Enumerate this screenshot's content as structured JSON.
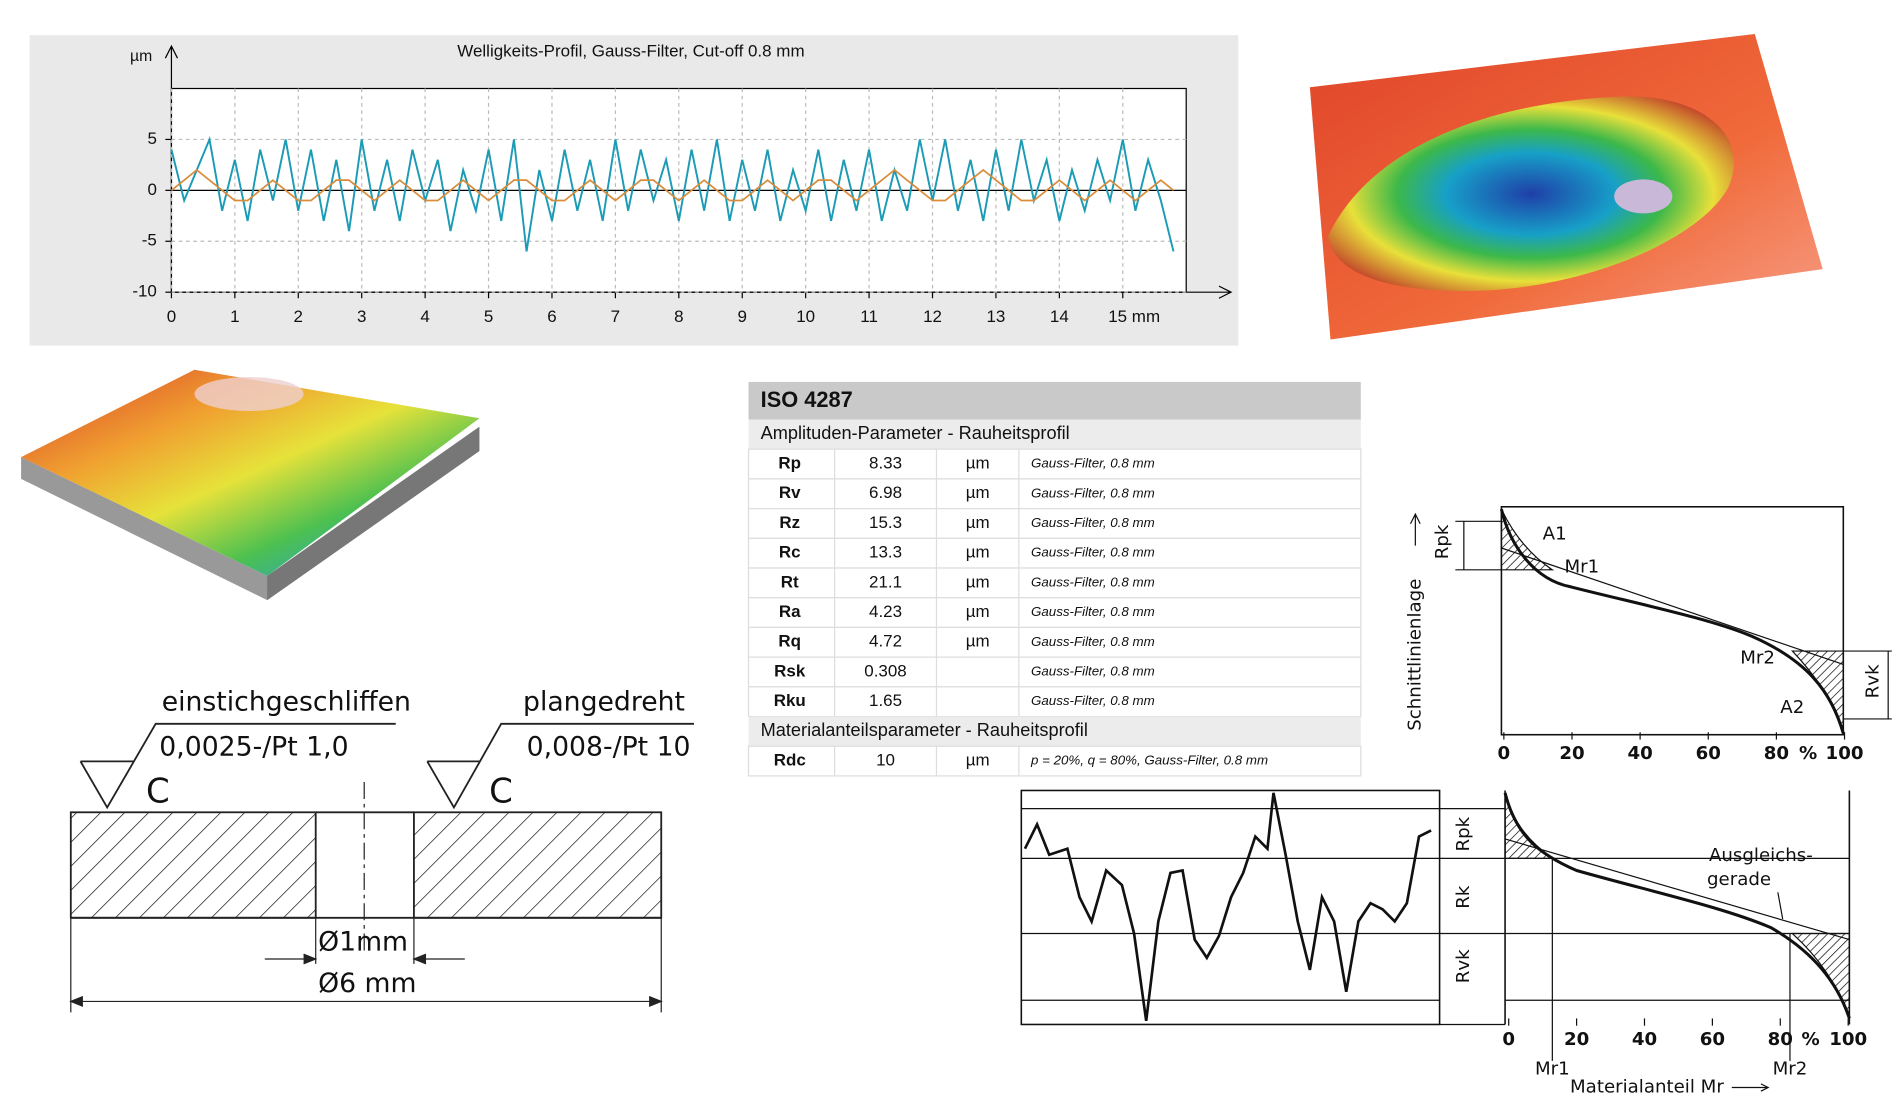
{
  "chart_data": {
    "type": "line",
    "title": "Welligkeits-Profil, Gauss-Filter, Cut-off 0.8 mm",
    "y_label": "µm",
    "x": [
      0,
      0.2,
      0.4,
      0.6,
      0.8,
      1,
      1.2,
      1.4,
      1.6,
      1.8,
      2,
      2.2,
      2.4,
      2.6,
      2.8,
      3,
      3.2,
      3.4,
      3.6,
      3.8,
      4,
      4.2,
      4.4,
      4.6,
      4.8,
      5,
      5.2,
      5.4,
      5.6,
      5.8,
      6,
      6.2,
      6.4,
      6.6,
      6.8,
      7,
      7.2,
      7.4,
      7.6,
      7.8,
      8,
      8.2,
      8.4,
      8.6,
      8.8,
      9,
      9.2,
      9.4,
      9.6,
      9.8,
      10,
      10.2,
      10.4,
      10.6,
      10.8,
      11,
      11.2,
      11.4,
      11.6,
      11.8,
      12,
      12.2,
      12.4,
      12.6,
      12.8,
      13,
      13.2,
      13.4,
      13.6,
      13.8,
      14,
      14.2,
      14.4,
      14.6,
      14.8,
      15,
      15.2,
      15.4,
      15.6,
      15.8
    ],
    "series": [
      {
        "color": "#1b9bb5",
        "values": [
          4,
          -1,
          2,
          5,
          -2,
          3,
          -3,
          4,
          -1,
          5,
          -2,
          4,
          -3,
          3,
          -4,
          5,
          -2,
          3,
          -3,
          4,
          -1,
          3,
          -4,
          2,
          -2,
          4,
          -3,
          5,
          -6,
          2,
          -3,
          4,
          -2,
          3,
          -3,
          5,
          -2,
          4,
          -1,
          3,
          -3,
          4,
          -2,
          5,
          -3,
          3,
          -2,
          4,
          -3,
          2,
          -2,
          4,
          -3,
          3,
          -2,
          4,
          -3,
          2,
          -2,
          5,
          -1,
          5,
          -2,
          3,
          -3,
          4,
          -2,
          5,
          -1,
          3,
          -3,
          2,
          -2,
          3,
          -1,
          5,
          -2,
          3,
          -1,
          -6
        ]
      },
      {
        "color": "#d98c3a",
        "values": [
          0,
          1,
          2,
          1,
          0,
          -1,
          -1,
          0,
          1,
          0,
          -1,
          -1,
          0,
          1,
          1,
          0,
          -1,
          0,
          1,
          0,
          -1,
          -1,
          0,
          1,
          0,
          -1,
          0,
          1,
          1,
          0,
          -1,
          -1,
          0,
          1,
          0,
          -1,
          0,
          1,
          1,
          0,
          -1,
          0,
          1,
          0,
          -1,
          -1,
          0,
          1,
          0,
          -1,
          0,
          1,
          1,
          0,
          -1,
          0,
          1,
          2,
          1,
          0,
          -1,
          -1,
          0,
          1,
          2,
          1,
          0,
          -1,
          -1,
          0,
          1,
          0,
          -1,
          0,
          1,
          0,
          -1,
          0,
          1,
          0
        ]
      }
    ],
    "xlim": [
      0,
      16
    ],
    "ylim": [
      -10,
      10
    ],
    "xticks": [
      0,
      1,
      2,
      3,
      4,
      5,
      6,
      7,
      8,
      9,
      10,
      11,
      12,
      13,
      14,
      {
        "value": 15,
        "label": "15 mm"
      }
    ],
    "yticks": [
      -10,
      -5,
      0,
      5
    ],
    "grid": true
  },
  "table": {
    "title": "ISO 4287",
    "sections": [
      {
        "heading": "Amplituden-Parameter - Rauheitsprofil",
        "rows": [
          {
            "name": "Rp",
            "value": 8.33,
            "unit": "µm",
            "filter": "Gauss-Filter, 0.8 mm"
          },
          {
            "name": "Rv",
            "value": 6.98,
            "unit": "µm",
            "filter": "Gauss-Filter, 0.8 mm"
          },
          {
            "name": "Rz",
            "value": 15.3,
            "unit": "µm",
            "filter": "Gauss-Filter, 0.8 mm"
          },
          {
            "name": "Rc",
            "value": 13.3,
            "unit": "µm",
            "filter": "Gauss-Filter, 0.8 mm"
          },
          {
            "name": "Rt",
            "value": 21.1,
            "unit": "µm",
            "filter": "Gauss-Filter, 0.8 mm"
          },
          {
            "name": "Ra",
            "value": 4.23,
            "unit": "µm",
            "filter": "Gauss-Filter, 0.8 mm"
          },
          {
            "name": "Rq",
            "value": 4.72,
            "unit": "µm",
            "filter": "Gauss-Filter, 0.8 mm"
          },
          {
            "name": "Rsk",
            "value": 0.308,
            "filter": "Gauss-Filter, 0.8 mm"
          },
          {
            "name": "Rku",
            "value": 1.65,
            "filter": "Gauss-Filter, 0.8 mm"
          }
        ]
      },
      {
        "heading": "Materialanteilsparameter - Rauheitsprofil",
        "rows": [
          {
            "name": "Rdc",
            "value": 10,
            "unit": "µm",
            "filter": "p = 20%, q = 80%, Gauss-Filter, 0.8 mm"
          }
        ]
      }
    ]
  },
  "drawing": {
    "left_process": "einstichgeschliffen",
    "left_spec": "0,0025-/Pt  1,0",
    "left_symbol": "C",
    "right_process": "plangedreht",
    "right_spec": "0,008-/Pt  10",
    "right_symbol": "C",
    "inner_diameter": "Ø1mm",
    "outer_diameter": "Ø6 mm"
  },
  "abbott_top": {
    "rpk": "Rpk",
    "a1": "A1",
    "mr1": "Mr1",
    "mr2": "Mr2",
    "a2": "A2",
    "rvk": "Rvk",
    "y_axis": "Schnittlinienlage",
    "x_ticks": [
      0,
      20,
      40,
      60,
      80,
      100
    ],
    "percent": "%"
  },
  "abbott_bottom": {
    "rpk": "Rpk",
    "rk": "Rk",
    "rvk": "Rvk",
    "fit_line_1": "Ausgleichs-",
    "fit_line_2": "gerade",
    "mr1": "Mr1",
    "mr2": "Mr2",
    "x_title": "Materialanteil Mr",
    "x_ticks": [
      0,
      20,
      40,
      60,
      80,
      100
    ],
    "percent": "%"
  }
}
